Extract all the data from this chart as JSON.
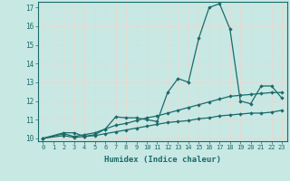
{
  "xlabel": "Humidex (Indice chaleur)",
  "xlim": [
    -0.5,
    23.5
  ],
  "ylim": [
    9.85,
    17.3
  ],
  "yticks": [
    10,
    11,
    12,
    13,
    14,
    15,
    16,
    17
  ],
  "xticks": [
    0,
    1,
    2,
    3,
    4,
    5,
    6,
    7,
    8,
    9,
    10,
    11,
    12,
    13,
    14,
    15,
    16,
    17,
    18,
    19,
    20,
    21,
    22,
    23
  ],
  "bg_color": "#c8e8e4",
  "line_color": "#1a6b6b",
  "grid_color": "#e8d8d0",
  "series": [
    {
      "x": [
        0,
        2,
        3,
        4,
        5,
        6,
        7,
        8,
        9,
        10,
        11,
        12,
        13,
        14,
        15,
        16,
        17,
        18,
        19,
        20,
        21,
        22,
        23
      ],
      "y": [
        10.0,
        10.3,
        10.3,
        10.1,
        10.2,
        10.5,
        11.15,
        11.1,
        11.1,
        11.0,
        10.9,
        12.45,
        13.2,
        13.0,
        15.35,
        17.0,
        17.2,
        15.85,
        12.0,
        11.85,
        12.8,
        12.8,
        12.15
      ]
    },
    {
      "x": [
        0,
        2,
        3,
        4,
        5,
        6,
        7,
        8,
        9,
        10,
        11,
        12,
        13,
        14,
        15,
        16,
        17,
        18,
        19,
        20,
        21,
        22,
        23
      ],
      "y": [
        10.0,
        10.25,
        10.1,
        10.2,
        10.3,
        10.5,
        10.7,
        10.8,
        10.95,
        11.1,
        11.2,
        11.35,
        11.5,
        11.65,
        11.8,
        11.95,
        12.1,
        12.25,
        12.3,
        12.35,
        12.4,
        12.45,
        12.45
      ]
    },
    {
      "x": [
        0,
        2,
        3,
        4,
        5,
        6,
        7,
        8,
        9,
        10,
        11,
        12,
        13,
        14,
        15,
        16,
        17,
        18,
        19,
        20,
        21,
        22,
        23
      ],
      "y": [
        10.0,
        10.15,
        10.05,
        10.1,
        10.15,
        10.25,
        10.35,
        10.45,
        10.55,
        10.65,
        10.75,
        10.85,
        10.9,
        10.95,
        11.05,
        11.1,
        11.2,
        11.25,
        11.3,
        11.35,
        11.35,
        11.4,
        11.5
      ]
    }
  ]
}
